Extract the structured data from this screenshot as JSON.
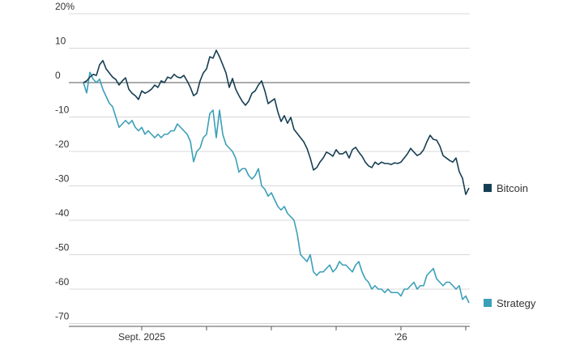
{
  "chart_data": {
    "type": "line",
    "categories": [
      null,
      null,
      null,
      null,
      null,
      null,
      null,
      null,
      null,
      null,
      null,
      null,
      null,
      null,
      null,
      null,
      null,
      null,
      "Sept. 2025",
      null,
      null,
      null,
      null,
      null,
      null,
      null,
      null,
      null,
      null,
      null,
      null,
      null,
      null,
      null,
      null,
      null,
      null,
      null,
      null,
      null,
      null,
      null,
      null,
      null,
      null,
      null,
      null,
      null,
      null,
      null,
      null,
      null,
      null,
      null,
      null,
      null,
      null,
      null,
      null,
      null,
      null,
      null,
      null,
      null,
      null,
      null,
      null,
      null,
      null,
      null,
      null,
      null,
      null,
      null,
      null,
      null,
      null,
      null,
      null,
      null,
      null,
      null,
      null,
      null,
      null,
      null,
      null,
      null,
      null,
      null,
      null,
      null,
      null,
      null,
      null,
      null,
      null,
      null,
      "'26",
      null,
      null,
      null,
      null,
      null,
      null,
      null,
      null,
      null,
      null,
      null,
      null,
      null,
      null,
      null,
      null,
      null,
      null,
      null,
      null,
      null
    ],
    "series": [
      {
        "name": "Bitcoin",
        "color": "#163e52",
        "values": [
          0,
          0.5,
          1.6,
          2.4,
          2.1,
          5.2,
          6.4,
          4.0,
          2.8,
          1.6,
          0.9,
          -0.7,
          0.5,
          1.4,
          -1.9,
          -3.1,
          -3.8,
          -4.9,
          -2.4,
          -3.1,
          -2.6,
          -1.9,
          -0.7,
          -1.4,
          0.5,
          0,
          1.6,
          1.2,
          2.4,
          1.6,
          1.4,
          2.1,
          0.5,
          -1.4,
          -3.8,
          -3.1,
          0.5,
          2.8,
          4.0,
          7.5,
          7.1,
          9.4,
          7.5,
          5.2,
          2.8,
          -1.4,
          1.2,
          -1.9,
          -3.8,
          -5.4,
          -6.6,
          -5.4,
          -3.1,
          -2.4,
          -0.7,
          0.5,
          -2.4,
          -6.1,
          -5.4,
          -4.7,
          -8.5,
          -11.3,
          -9.6,
          -11.8,
          -10.1,
          -13.6,
          -14.8,
          -16,
          -17.2,
          -19.1,
          -21.9,
          -25.4,
          -24.7,
          -23.1,
          -21.9,
          -20.2,
          -20.7,
          -21.4,
          -19.5,
          -20.7,
          -20.7,
          -20,
          -21.9,
          -19.5,
          -18.8,
          -20.2,
          -21.4,
          -23.1,
          -24.2,
          -24.7,
          -23.1,
          -23.8,
          -23.1,
          -23.5,
          -23.5,
          -23.8,
          -23.3,
          -23.5,
          -23.1,
          -21.9,
          -20.7,
          -19.1,
          -20.2,
          -21.2,
          -20.7,
          -19.5,
          -17.2,
          -15.3,
          -16.5,
          -16.7,
          -18.4,
          -21.2,
          -21.9,
          -22.6,
          -23.1,
          -21.9,
          -25.9,
          -27.8,
          -32.5,
          -30.6
        ]
      },
      {
        "name": "Strategy",
        "color": "#3a9fb8",
        "values": [
          0,
          -3,
          3,
          1,
          0,
          1,
          -2,
          -4,
          -6,
          -7,
          -10,
          -13,
          -12,
          -11,
          -12,
          -11,
          -13,
          -14,
          -13,
          -15,
          -14,
          -15,
          -16,
          -15,
          -16,
          -15,
          -15,
          -14,
          -14,
          -12,
          -13,
          -14,
          -15,
          -17,
          -23,
          -20,
          -19,
          -16,
          -15,
          -9,
          -8,
          -16,
          -8,
          -15,
          -18,
          -19,
          -20,
          -22,
          -26,
          -25,
          -25,
          -27,
          -28,
          -27,
          -25,
          -30,
          -31,
          -33,
          -32,
          -34,
          -36,
          -37,
          -36,
          -38,
          -39,
          -40,
          -44,
          -50,
          -51,
          -52,
          -50,
          -55,
          -56,
          -55,
          -55,
          -54,
          -53,
          -55,
          -54,
          -52,
          -53,
          -53,
          -54,
          -55,
          -53,
          -52,
          -55,
          -57,
          -58,
          -60,
          -59,
          -60,
          -60,
          -61,
          -60,
          -61,
          -61,
          -61,
          -62,
          -60,
          -60,
          -59,
          -58,
          -60,
          -59,
          -59,
          -56,
          -55,
          -54,
          -57,
          -58,
          -59,
          -58,
          -58,
          -59,
          -60,
          -59,
          -63,
          -62,
          -64
        ]
      }
    ],
    "ylim": [
      -70,
      20
    ],
    "yticks": [
      {
        "value": 20,
        "label": "20%"
      },
      10,
      0,
      -10,
      -20,
      -30,
      -40,
      -50,
      -60,
      -70
    ],
    "grid": true
  }
}
